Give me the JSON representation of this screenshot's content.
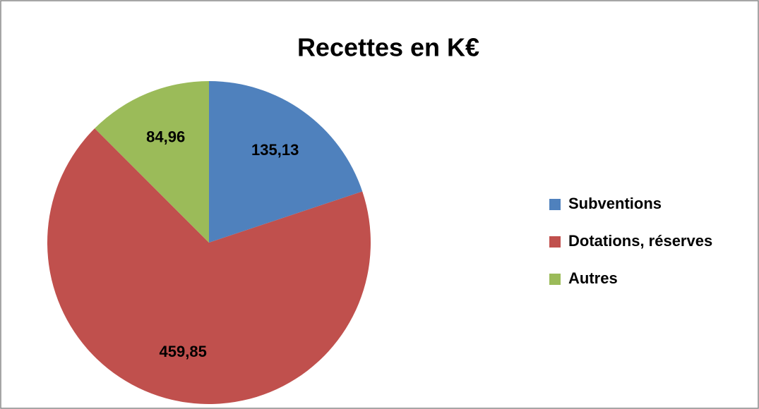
{
  "chart_data": {
    "type": "pie",
    "title": "Recettes en K€",
    "categories": [
      "Subventions",
      "Dotations, réserves",
      "Autres"
    ],
    "values": [
      135.13,
      459.85,
      84.96
    ],
    "value_labels": [
      "135,13",
      "459,85",
      "84,96"
    ],
    "colors": [
      "#4f81bd",
      "#c0504d",
      "#9bbb59"
    ],
    "legend": "right"
  }
}
